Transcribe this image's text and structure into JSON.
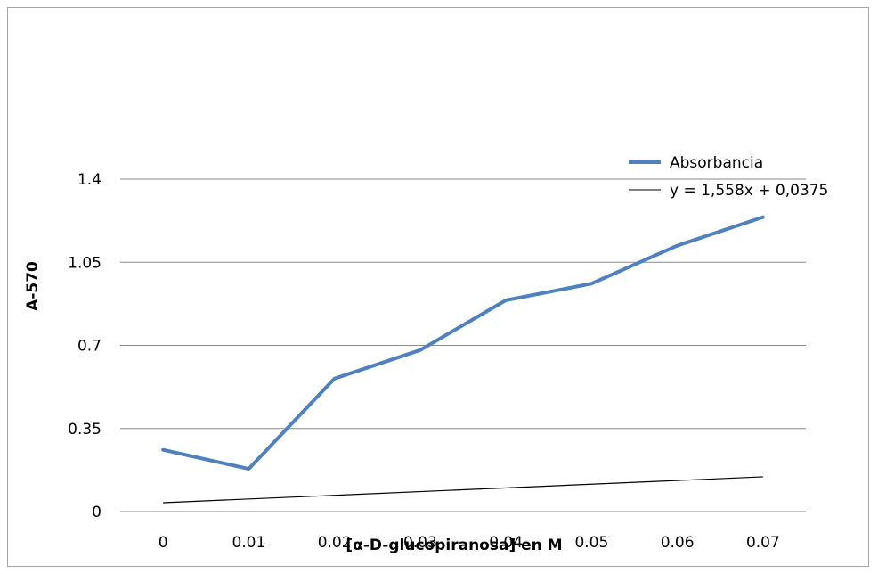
{
  "chart_data": {
    "type": "line",
    "xlabel": "[α-D-glucopiranosa] en M",
    "ylabel": "A-570",
    "categories": [
      "0",
      "0.01",
      "0.02",
      "0.03",
      "0.04",
      "0.05",
      "0.06",
      "0.07"
    ],
    "x": [
      0,
      0.01,
      0.02,
      0.03,
      0.04,
      0.05,
      0.06,
      0.07
    ],
    "y_ticks": [
      "0",
      "0.35",
      "0.7",
      "1.05",
      "1.4"
    ],
    "ylim": [
      0,
      1.4
    ],
    "grid": true,
    "legend_position": "top-right",
    "series": [
      {
        "name": "Absorbancia",
        "color": "#4f81bd",
        "values": [
          0.26,
          0.18,
          0.56,
          0.68,
          0.89,
          0.96,
          1.12,
          1.24
        ]
      }
    ],
    "trendline": {
      "label": "y = 1,558x + 0,0375",
      "color": "#000000",
      "slope": 1.558,
      "intercept": 0.0375
    }
  }
}
